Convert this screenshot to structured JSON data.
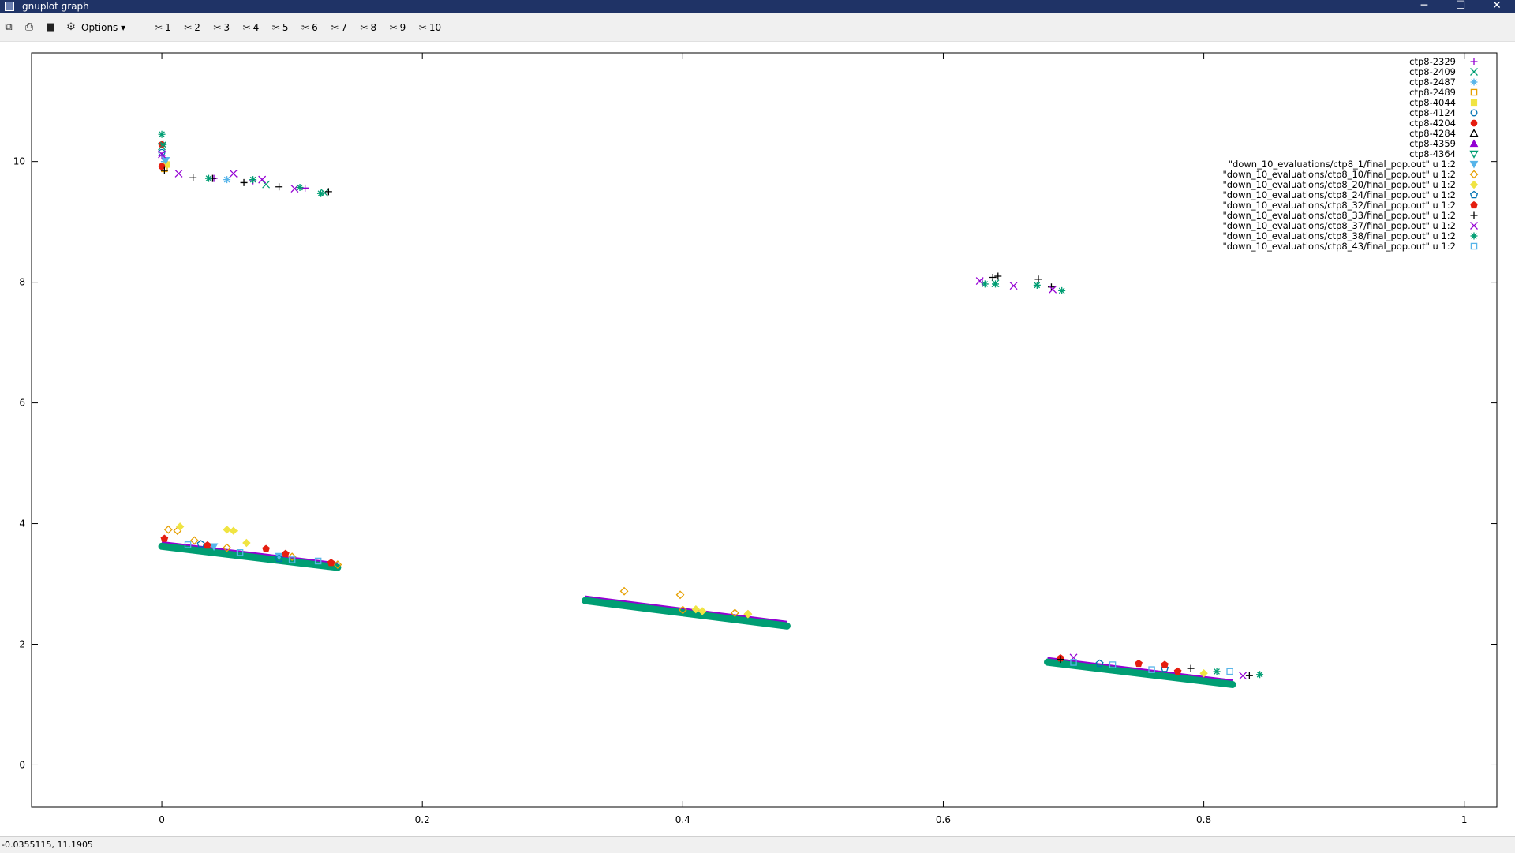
{
  "window": {
    "title": "gnuplot graph",
    "minimize_glyph": "─",
    "maximize_glyph": "☐",
    "close_glyph": "✕"
  },
  "toolbar": {
    "copy_icon": "copy-icon",
    "print_icon": "print-icon",
    "save_icon": "save-icon",
    "options_label": "Options",
    "plot_toggles": [
      "1",
      "2",
      "3",
      "4",
      "5",
      "6",
      "7",
      "8",
      "9",
      "10"
    ]
  },
  "status": {
    "coordinates": "-0.0355115,  11.1905"
  },
  "chart_data": {
    "type": "scatter",
    "title": "",
    "xlabel": "",
    "ylabel": "",
    "xlim": [
      -0.1,
      1.025
    ],
    "ylim": [
      -0.7,
      11.8
    ],
    "xticks": [
      "0",
      "0.2",
      "0.4",
      "0.6",
      "0.8",
      "1"
    ],
    "xtick_values": [
      0,
      0.2,
      0.4,
      0.6,
      0.8,
      1
    ],
    "yticks": [
      "0",
      "2",
      "4",
      "6",
      "8",
      "10"
    ],
    "ytick_values": [
      0,
      2,
      4,
      6,
      8,
      10
    ],
    "grid": false,
    "legend": "top-right",
    "series": [
      {
        "name": "ctp8-2329",
        "color": "#9400d3",
        "marker": "plus",
        "points": [
          [
            0.0,
            10.1
          ],
          [
            0.04,
            9.72
          ],
          [
            0.07,
            9.68
          ],
          [
            0.11,
            9.56
          ],
          [
            0.63,
            8.0
          ]
        ]
      },
      {
        "name": "ctp8-2409",
        "color": "#009e73",
        "marker": "cross",
        "points": [
          [
            0.0,
            10.25
          ],
          [
            0.08,
            9.62
          ],
          [
            0.125,
            9.48
          ],
          [
            0.64,
            7.98
          ]
        ]
      },
      {
        "name": "ctp8-2487",
        "color": "#56b4e9",
        "marker": "star",
        "points": [
          [
            0.002,
            10.0
          ],
          [
            0.05,
            9.7
          ]
        ]
      },
      {
        "name": "ctp8-2489",
        "color": "#e69f00",
        "marker": "square",
        "points": [
          [
            0.002,
            9.88
          ]
        ]
      },
      {
        "name": "ctp8-4044",
        "color": "#f0e442",
        "marker": "filledsquare",
        "points": [
          [
            0.004,
            9.95
          ]
        ]
      },
      {
        "name": "ctp8-4124",
        "color": "#0072b2",
        "marker": "circle",
        "points": [
          [
            0.0,
            10.15
          ]
        ]
      },
      {
        "name": "ctp8-4204",
        "color": "#e51e10",
        "marker": "filledcircle",
        "points": [
          [
            0.0,
            10.28
          ],
          [
            0.0,
            9.92
          ]
        ]
      },
      {
        "name": "ctp8-4284",
        "color": "#000000",
        "marker": "triangle",
        "points": []
      },
      {
        "name": "ctp8-4359",
        "color": "#9400d3",
        "marker": "filledtriangle",
        "points": []
      },
      {
        "name": "ctp8-4364",
        "color": "#009e73",
        "marker": "invtriangle",
        "points": []
      },
      {
        "name": "\"down_10_evaluations/ctp8_1/final_pop.out\"  u 1:2",
        "color": "#56b4e9",
        "marker": "filledinvtriangle",
        "points": [
          [
            0.003,
            10.02
          ],
          [
            0.04,
            3.62
          ],
          [
            0.09,
            3.46
          ]
        ]
      },
      {
        "name": "\"down_10_evaluations/ctp8_10/final_pop.out\" u 1:2",
        "color": "#e69f00",
        "marker": "diamond",
        "points": [
          [
            0.005,
            3.9
          ],
          [
            0.012,
            3.88
          ],
          [
            0.025,
            3.72
          ],
          [
            0.05,
            3.6
          ],
          [
            0.1,
            3.45
          ],
          [
            0.135,
            3.32
          ],
          [
            0.355,
            2.88
          ],
          [
            0.398,
            2.82
          ],
          [
            0.4,
            2.57
          ],
          [
            0.44,
            2.52
          ],
          [
            0.45,
            2.5
          ]
        ]
      },
      {
        "name": "\"down_10_evaluations/ctp8_20/final_pop.out\" u 1:2",
        "color": "#f0e442",
        "marker": "filleddiamond",
        "points": [
          [
            0.014,
            3.95
          ],
          [
            0.05,
            3.9
          ],
          [
            0.055,
            3.88
          ],
          [
            0.065,
            3.68
          ],
          [
            0.41,
            2.58
          ],
          [
            0.415,
            2.55
          ],
          [
            0.45,
            2.5
          ],
          [
            0.8,
            1.52
          ]
        ]
      },
      {
        "name": "\"down_10_evaluations/ctp8_24/final_pop.out\" u 1:2",
        "color": "#0072b2",
        "marker": "pentagon",
        "points": [
          [
            0.03,
            3.66
          ],
          [
            0.09,
            3.42
          ],
          [
            0.72,
            1.68
          ],
          [
            0.77,
            1.6
          ]
        ]
      },
      {
        "name": "\"down_10_evaluations/ctp8_32/final_pop.out\" u 1:2",
        "color": "#e51e10",
        "marker": "filledpentagon",
        "points": [
          [
            0.002,
            3.75
          ],
          [
            0.035,
            3.64
          ],
          [
            0.08,
            3.58
          ],
          [
            0.095,
            3.5
          ],
          [
            0.13,
            3.35
          ],
          [
            0.69,
            1.77
          ],
          [
            0.75,
            1.68
          ],
          [
            0.77,
            1.66
          ],
          [
            0.78,
            1.55
          ]
        ]
      },
      {
        "name": "\"down_10_evaluations/ctp8_33/final_pop.out\" u 1:2",
        "color": "#000000",
        "marker": "plus",
        "points": [
          [
            0.002,
            9.85
          ],
          [
            0.024,
            9.73
          ],
          [
            0.039,
            9.72
          ],
          [
            0.063,
            9.65
          ],
          [
            0.09,
            9.58
          ],
          [
            0.128,
            9.5
          ],
          [
            0.638,
            8.08
          ],
          [
            0.642,
            8.1
          ],
          [
            0.673,
            8.05
          ],
          [
            0.683,
            7.92
          ],
          [
            0.69,
            1.75
          ],
          [
            0.79,
            1.6
          ],
          [
            0.835,
            1.48
          ]
        ]
      },
      {
        "name": "\"down_10_evaluations/ctp8_37/final_pop.out\" u 1:2",
        "color": "#9400d3",
        "marker": "cross",
        "points": [
          [
            0.0,
            10.12
          ],
          [
            0.013,
            9.8
          ],
          [
            0.055,
            9.8
          ],
          [
            0.077,
            9.7
          ],
          [
            0.102,
            9.55
          ],
          [
            0.628,
            8.02
          ],
          [
            0.654,
            7.94
          ],
          [
            0.684,
            7.88
          ],
          [
            0.7,
            1.78
          ],
          [
            0.83,
            1.48
          ]
        ]
      },
      {
        "name": "\"down_10_evaluations/ctp8_38/final_pop.out\" u 1:2",
        "color": "#009e73",
        "marker": "star",
        "points": [
          [
            0.0,
            10.45
          ],
          [
            0.001,
            10.28
          ],
          [
            0.036,
            9.72
          ],
          [
            0.07,
            9.7
          ],
          [
            0.106,
            9.57
          ],
          [
            0.122,
            9.47
          ],
          [
            0.632,
            7.97
          ],
          [
            0.64,
            7.97
          ],
          [
            0.672,
            7.95
          ],
          [
            0.691,
            7.86
          ],
          [
            0.81,
            1.55
          ],
          [
            0.843,
            1.5
          ]
        ]
      },
      {
        "name": "\"down_10_evaluations/ctp8_43/final_pop.out\" u 1:2",
        "color": "#56b4e9",
        "marker": "square",
        "points": [
          [
            0.02,
            3.65
          ],
          [
            0.06,
            3.52
          ],
          [
            0.1,
            3.4
          ],
          [
            0.12,
            3.38
          ],
          [
            0.7,
            1.7
          ],
          [
            0.73,
            1.66
          ],
          [
            0.76,
            1.58
          ],
          [
            0.82,
            1.55
          ]
        ]
      }
    ],
    "fronts": [
      {
        "x": [
          0.0,
          0.135
        ],
        "y0": 3.65,
        "y1": 3.3,
        "color": "#009e73"
      },
      {
        "x": [
          0.325,
          0.48
        ],
        "y0": 2.75,
        "y1": 2.33,
        "color": "#009e73"
      },
      {
        "x": [
          0.68,
          0.822
        ],
        "y0": 1.73,
        "y1": 1.36,
        "color": "#009e73"
      }
    ]
  }
}
